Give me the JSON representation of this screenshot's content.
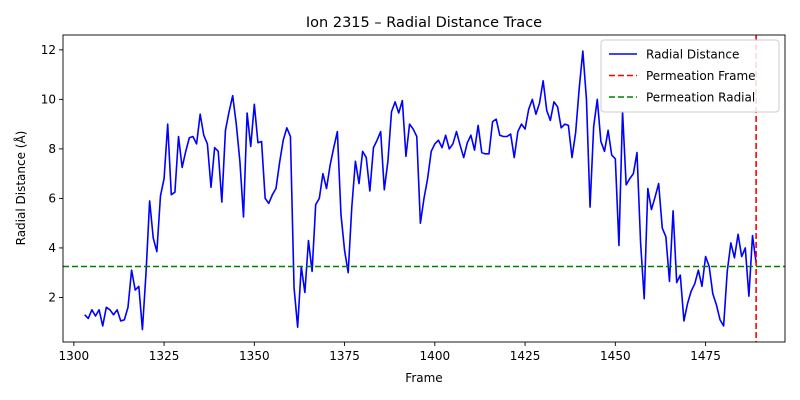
{
  "chart_data": {
    "type": "line",
    "title": "Ion 2315 – Radial Distance Trace",
    "xlabel": "Frame",
    "ylabel": "Radial Distance (Å)",
    "xlim": [
      1297,
      1497
    ],
    "ylim": [
      0.2,
      12.6
    ],
    "xticks": [
      1300,
      1325,
      1350,
      1375,
      1400,
      1425,
      1450,
      1475
    ],
    "yticks": [
      2,
      4,
      6,
      8,
      10,
      12
    ],
    "grid": false,
    "legend_position": "top-right",
    "series": [
      {
        "name": "Radial Distance",
        "color": "#0000ff",
        "style": "solid",
        "x": [
          1303,
          1304,
          1305,
          1306,
          1307,
          1308,
          1309,
          1310,
          1311,
          1312,
          1313,
          1314,
          1315,
          1316,
          1317,
          1318,
          1319,
          1320,
          1321,
          1322,
          1323,
          1324,
          1325,
          1326,
          1327,
          1328,
          1329,
          1330,
          1331,
          1332,
          1333,
          1334,
          1335,
          1336,
          1337,
          1338,
          1339,
          1340,
          1341,
          1342,
          1343,
          1344,
          1345,
          1346,
          1347,
          1348,
          1349,
          1350,
          1351,
          1352,
          1353,
          1354,
          1355,
          1356,
          1357,
          1358,
          1359,
          1360,
          1361,
          1362,
          1363,
          1364,
          1365,
          1366,
          1367,
          1368,
          1369,
          1370,
          1371,
          1372,
          1373,
          1374,
          1375,
          1376,
          1377,
          1378,
          1379,
          1380,
          1381,
          1382,
          1383,
          1384,
          1385,
          1386,
          1387,
          1388,
          1389,
          1390,
          1391,
          1392,
          1393,
          1394,
          1395,
          1396,
          1397,
          1398,
          1399,
          1400,
          1401,
          1402,
          1403,
          1404,
          1405,
          1406,
          1407,
          1408,
          1409,
          1410,
          1411,
          1412,
          1413,
          1414,
          1415,
          1416,
          1417,
          1418,
          1419,
          1420,
          1421,
          1422,
          1423,
          1424,
          1425,
          1426,
          1427,
          1428,
          1429,
          1430,
          1431,
          1432,
          1433,
          1434,
          1435,
          1436,
          1437,
          1438,
          1439,
          1440,
          1441,
          1442,
          1443,
          1444,
          1445,
          1446,
          1447,
          1448,
          1449,
          1450,
          1451,
          1452,
          1453,
          1454,
          1455,
          1456,
          1457,
          1458,
          1459,
          1460,
          1461,
          1462,
          1463,
          1464,
          1465,
          1466,
          1467,
          1468,
          1469,
          1470,
          1471,
          1472,
          1473,
          1474,
          1475,
          1476,
          1477,
          1478,
          1479,
          1480,
          1481,
          1482,
          1483,
          1484,
          1485,
          1486,
          1487,
          1488,
          1489
        ],
        "y": [
          1.3,
          1.15,
          1.5,
          1.25,
          1.5,
          0.85,
          1.6,
          1.5,
          1.3,
          1.5,
          1.05,
          1.1,
          1.6,
          3.1,
          2.3,
          2.45,
          0.7,
          3.0,
          5.9,
          4.4,
          3.85,
          6.1,
          6.8,
          9.0,
          6.15,
          6.25,
          8.5,
          7.25,
          7.9,
          8.45,
          8.5,
          8.2,
          9.4,
          8.55,
          8.2,
          6.45,
          8.05,
          7.9,
          5.85,
          8.75,
          9.5,
          10.15,
          9.0,
          7.5,
          5.25,
          9.45,
          8.1,
          9.8,
          8.25,
          8.3,
          6.0,
          5.8,
          6.15,
          6.4,
          7.45,
          8.35,
          8.85,
          8.5,
          2.4,
          0.8,
          3.25,
          2.2,
          4.3,
          3.05,
          5.75,
          6.0,
          7.0,
          6.4,
          7.35,
          8.05,
          8.7,
          5.35,
          3.9,
          3.0,
          5.65,
          7.5,
          6.6,
          7.9,
          7.65,
          6.3,
          8.05,
          8.35,
          8.7,
          6.35,
          7.5,
          9.5,
          9.9,
          9.45,
          9.95,
          7.7,
          9.0,
          8.8,
          8.5,
          5.0,
          6.0,
          6.8,
          7.9,
          8.2,
          8.35,
          8.05,
          8.55,
          8.0,
          8.2,
          8.7,
          8.15,
          7.65,
          8.25,
          8.55,
          7.95,
          8.95,
          7.85,
          7.8,
          7.8,
          9.1,
          9.2,
          8.55,
          8.5,
          8.5,
          8.6,
          7.65,
          8.7,
          9.0,
          8.8,
          9.6,
          10.0,
          9.4,
          9.85,
          10.75,
          9.55,
          9.15,
          9.9,
          9.7,
          8.85,
          9.0,
          8.95,
          7.65,
          8.65,
          10.45,
          11.95,
          10.0,
          5.65,
          8.9,
          10.0,
          8.3,
          7.9,
          8.75,
          7.75,
          7.6,
          4.1,
          9.5,
          6.55,
          6.8,
          7.0,
          7.85,
          4.2,
          1.95,
          6.4,
          5.55,
          6.05,
          6.6,
          4.8,
          4.45,
          2.65,
          5.5,
          2.6,
          2.9,
          1.05,
          1.75,
          2.25,
          2.55,
          3.1,
          2.45,
          3.65,
          3.25,
          2.15,
          1.7,
          1.1,
          0.85,
          3.05,
          4.2,
          3.6,
          4.55,
          3.65,
          4.0,
          2.05,
          4.5,
          3.4
        ]
      },
      {
        "name": "Permeation Frame",
        "color": "#ff0000",
        "style": "dashed",
        "orientation": "vertical",
        "x": 1489
      },
      {
        "name": "Permeation Radial",
        "color": "#008000",
        "style": "dashed",
        "orientation": "horizontal",
        "y": 3.25
      }
    ]
  }
}
